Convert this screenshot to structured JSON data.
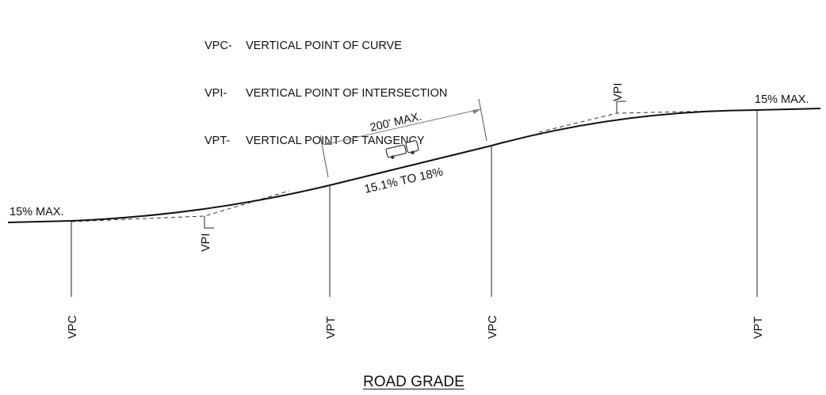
{
  "legend": [
    {
      "abbr": "VPC-",
      "text": "VERTICAL POINT OF CURVE"
    },
    {
      "abbr": "VPI-",
      "text": "VERTICAL POINT OF INTERSECTION"
    },
    {
      "abbr": "VPT-",
      "text": "VERTICAL POINT OF TANGENCY"
    }
  ],
  "grade_labels": {
    "left": "15% MAX.",
    "right": "15% MAX.",
    "middle": "15.1% TO 18%",
    "length": "200' MAX."
  },
  "point_labels": {
    "vpi_left": "VPI",
    "vpi_right": "VPI",
    "vpc_left": "VPC",
    "vpt_mid": "VPT",
    "vpc_mid": "VPC",
    "vpt_right": "VPT"
  },
  "title": "ROAD GRADE",
  "icons": {
    "vehicle": "truck-trailer-icon"
  }
}
